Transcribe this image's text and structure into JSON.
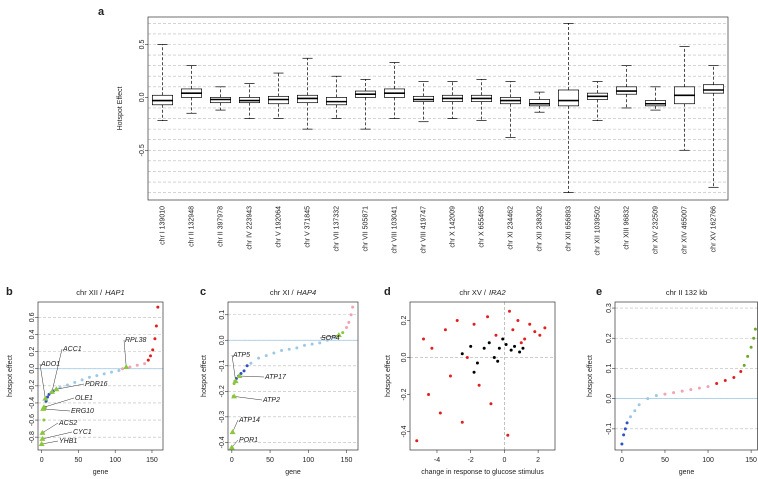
{
  "chart_data": [
    {
      "type": "box",
      "panel_label": "a",
      "y_label": "Hotspot Effect",
      "categories": [
        "chr I 139010",
        "chr II 132948",
        "chr II 397978",
        "chr IV 223943",
        "chr V 192064",
        "chr V 371845",
        "chr VII 137332",
        "chr VII 505871",
        "chr VIII 103041",
        "chr VIII 419747",
        "chr X 142009",
        "chr X 655465",
        "chr XI 234462",
        "chr XII 238302",
        "chr XII 656893",
        "chr XII 1039502",
        "chr XIII 96832",
        "chr XIV 232509",
        "chr XIV 465007",
        "chr XV 162766"
      ],
      "boxes": [
        {
          "low": -0.22,
          "q1": -0.07,
          "median": -0.03,
          "q3": 0.02,
          "high": 0.5
        },
        {
          "low": -0.15,
          "q1": 0.0,
          "median": 0.04,
          "q3": 0.08,
          "high": 0.3
        },
        {
          "low": -0.12,
          "q1": -0.05,
          "median": -0.02,
          "q3": 0.0,
          "high": 0.1
        },
        {
          "low": -0.2,
          "q1": -0.05,
          "median": -0.03,
          "q3": 0.0,
          "high": 0.13
        },
        {
          "low": -0.2,
          "q1": -0.06,
          "median": -0.02,
          "q3": 0.01,
          "high": 0.23
        },
        {
          "low": -0.3,
          "q1": -0.05,
          "median": -0.01,
          "q3": 0.02,
          "high": 0.37
        },
        {
          "low": -0.2,
          "q1": -0.07,
          "median": -0.04,
          "q3": 0.0,
          "high": 0.2
        },
        {
          "low": -0.3,
          "q1": 0.0,
          "median": 0.03,
          "q3": 0.06,
          "high": 0.17
        },
        {
          "low": -0.2,
          "q1": 0.0,
          "median": 0.04,
          "q3": 0.08,
          "high": 0.33
        },
        {
          "low": -0.23,
          "q1": -0.04,
          "median": -0.02,
          "q3": 0.01,
          "high": 0.15
        },
        {
          "low": -0.2,
          "q1": -0.04,
          "median": -0.01,
          "q3": 0.02,
          "high": 0.15
        },
        {
          "low": -0.22,
          "q1": -0.04,
          "median": -0.01,
          "q3": 0.02,
          "high": 0.17
        },
        {
          "low": -0.38,
          "q1": -0.06,
          "median": -0.03,
          "q3": 0.0,
          "high": 0.15
        },
        {
          "low": -0.14,
          "q1": -0.08,
          "median": -0.06,
          "q3": -0.02,
          "high": 0.05
        },
        {
          "low": -0.9,
          "q1": -0.08,
          "median": -0.03,
          "q3": 0.07,
          "high": 0.7
        },
        {
          "low": -0.22,
          "q1": -0.02,
          "median": 0.01,
          "q3": 0.04,
          "high": 0.15
        },
        {
          "low": -0.1,
          "q1": 0.03,
          "median": 0.06,
          "q3": 0.1,
          "high": 0.3
        },
        {
          "low": -0.12,
          "q1": -0.08,
          "median": -0.06,
          "q3": -0.03,
          "high": 0.1
        },
        {
          "low": -0.5,
          "q1": -0.06,
          "median": 0.02,
          "q3": 0.1,
          "high": 0.48
        },
        {
          "low": -0.85,
          "q1": 0.04,
          "median": 0.07,
          "q3": 0.12,
          "high": 0.3
        }
      ],
      "ylim": [
        -0.97,
        0.76
      ],
      "yticks": [
        -0.5,
        {
          "value": 0,
          "label": "0.0"
        },
        0.5
      ],
      "ygrid": [
        -0.9,
        -0.8,
        -0.7,
        -0.6,
        -0.5,
        -0.4,
        -0.3,
        -0.2,
        -0.1,
        0.1,
        0.2,
        0.3,
        0.4,
        0.5,
        0.6,
        0.7
      ]
    },
    {
      "type": "scatter",
      "panel_label": "b",
      "title": [
        "chr XII /",
        "HAP1"
      ],
      "x_label": "gene",
      "y_label": "hotspot effect",
      "xlim": [
        -5,
        165
      ],
      "xticks": [
        0,
        50,
        100,
        150
      ],
      "ylim": [
        -0.95,
        0.78
      ],
      "yticks": [
        -0.8,
        -0.6,
        -0.4,
        -0.2,
        {
          "value": 0,
          "label": "0.0"
        },
        0.2,
        0.4,
        0.6
      ],
      "grid": true,
      "zero_line": true,
      "series": [
        {
          "color": "#8cc63f",
          "x": [
            0,
            1,
            2,
            3,
            5
          ],
          "values": [
            -0.88,
            -0.82,
            -0.75,
            -0.6,
            -0.45
          ]
        },
        {
          "color": "#3050c8",
          "x": [
            6,
            8,
            10,
            13,
            16,
            20
          ],
          "values": [
            -0.38,
            -0.33,
            -0.3,
            -0.28,
            -0.26,
            -0.24
          ]
        },
        {
          "color": "#9cc8e6",
          "x": [
            25,
            35,
            45,
            55,
            65,
            75,
            85,
            95,
            105
          ],
          "values": [
            -0.22,
            -0.19,
            -0.16,
            -0.13,
            -0.1,
            -0.08,
            -0.06,
            -0.04,
            -0.02
          ]
        },
        {
          "color": "#f2a2b2",
          "x": [
            110,
            120,
            130,
            140
          ],
          "values": [
            0.0,
            0.02,
            0.04,
            0.06
          ]
        },
        {
          "color": "#e02020",
          "x": [
            145,
            148,
            151,
            154,
            156,
            158
          ],
          "values": [
            0.1,
            0.15,
            0.22,
            0.35,
            0.5,
            0.72
          ]
        }
      ],
      "marker_color": "#8cc63f",
      "annotations": [
        {
          "label": "ACC1",
          "x": 14,
          "y": -0.27
        },
        {
          "label": "ADO1",
          "x": 5,
          "y": -0.35
        },
        {
          "label": "PDR16",
          "x": 20,
          "y": -0.24
        },
        {
          "label": "OLE1",
          "x": 3,
          "y": -0.45
        },
        {
          "label": "ERG10",
          "x": 2,
          "y": -0.47
        },
        {
          "label": "ACS2",
          "x": 1,
          "y": -0.75
        },
        {
          "label": "CYC1",
          "x": 1,
          "y": -0.82
        },
        {
          "label": "YHB1",
          "x": 0,
          "y": -0.88
        },
        {
          "label": "RPL38",
          "x": 115,
          "y": 0.02
        }
      ]
    },
    {
      "type": "scatter",
      "panel_label": "c",
      "title": [
        "chr XI /",
        "HAP4"
      ],
      "x_label": "gene",
      "y_label": "hotspot effect",
      "xlim": [
        -5,
        165
      ],
      "xticks": [
        0,
        50,
        100,
        150
      ],
      "ylim": [
        -0.43,
        0.15
      ],
      "yticks": [
        -0.4,
        -0.3,
        -0.2,
        -0.1,
        {
          "value": 0,
          "label": "0.0"
        },
        0.1
      ],
      "grid": true,
      "zero_line": true,
      "series": [
        {
          "color": "#8cc63f",
          "x": [
            0,
            1,
            2,
            3,
            4
          ],
          "values": [
            -0.42,
            -0.36,
            -0.22,
            -0.17,
            -0.16
          ]
        },
        {
          "color": "#3050c8",
          "x": [
            6,
            9,
            12,
            16,
            20
          ],
          "values": [
            -0.15,
            -0.14,
            -0.13,
            -0.12,
            -0.1
          ]
        },
        {
          "color": "#9cc8e6",
          "x": [
            25,
            35,
            45,
            55,
            65,
            75,
            85,
            95,
            105,
            115,
            125,
            135
          ],
          "values": [
            -0.09,
            -0.07,
            -0.06,
            -0.05,
            -0.04,
            -0.035,
            -0.03,
            -0.02,
            -0.015,
            -0.01,
            0.0,
            0.01
          ]
        },
        {
          "color": "#8cc63f",
          "x": [
            140,
            145
          ],
          "values": [
            0.02,
            0.03
          ]
        },
        {
          "color": "#f2a2b2",
          "x": [
            150,
            153,
            156,
            158
          ],
          "values": [
            0.05,
            0.07,
            0.1,
            0.13
          ]
        }
      ],
      "marker_color": "#8cc63f",
      "annotations": [
        {
          "label": "SOP4",
          "x": 140,
          "y": 0.02
        },
        {
          "label": "ATP5",
          "x": 5,
          "y": -0.16
        },
        {
          "label": "ATP17",
          "x": 10,
          "y": -0.14
        },
        {
          "label": "ATP2",
          "x": 3,
          "y": -0.22
        },
        {
          "label": "ATP14",
          "x": 1,
          "y": -0.36
        },
        {
          "label": "POR1",
          "x": 0,
          "y": -0.42
        }
      ]
    },
    {
      "type": "scatter",
      "panel_label": "d",
      "title": [
        "chr XV /",
        "IRA2"
      ],
      "x_label": "change in response to glucose stimulus",
      "y_label": "hotspot effect",
      "xlim": [
        -5.6,
        3
      ],
      "xticks": [
        -4,
        -2,
        0,
        2
      ],
      "ylim": [
        -0.5,
        0.3
      ],
      "yticks": [
        -0.4,
        -0.2,
        {
          "value": 0,
          "label": "0.0"
        },
        0.2
      ],
      "grid": false,
      "cross_lines": true,
      "series": [
        {
          "color": "#e02020",
          "x": [
            -5.2,
            -4.8,
            -4.5,
            -4.3,
            -3.8,
            -3.5,
            -3.2,
            -2.8,
            -2.5,
            -2.2,
            -1.8,
            -1.5,
            -1.0,
            -0.5,
            0.2,
            0.5,
            0.8,
            1.2,
            1.5,
            1.8,
            2.1,
            2.4,
            -0.8,
            0.3,
            1.0
          ],
          "values": [
            -0.45,
            0.1,
            -0.2,
            0.05,
            -0.3,
            0.15,
            -0.1,
            0.2,
            -0.35,
            0.0,
            0.18,
            -0.15,
            0.22,
            0.12,
            -0.42,
            0.15,
            0.2,
            0.1,
            0.18,
            0.14,
            0.12,
            0.16,
            -0.25,
            0.25,
            0.08
          ]
        },
        {
          "color": "#000000",
          "x": [
            -2.5,
            -2.0,
            -1.6,
            -1.2,
            -0.9,
            -0.6,
            -0.3,
            -0.1,
            0.1,
            0.4,
            0.6,
            0.9,
            1.1,
            -1.8,
            -0.4
          ],
          "values": [
            0.02,
            0.06,
            -0.03,
            0.05,
            0.08,
            0.0,
            0.05,
            0.1,
            0.07,
            0.04,
            0.06,
            0.03,
            0.05,
            -0.08,
            -0.02
          ]
        }
      ]
    },
    {
      "type": "scatter",
      "panel_label": "e",
      "title": [
        "chr II 132 kb"
      ],
      "x_label": "gene",
      "y_label": "hotspot effect",
      "xlim": [
        -8,
        158
      ],
      "xticks": [
        0,
        50,
        100,
        150
      ],
      "ylim": [
        -0.17,
        0.32
      ],
      "yticks": [
        -0.1,
        {
          "value": 0,
          "label": "0.0"
        },
        0.1,
        0.2,
        0.3
      ],
      "grid": true,
      "zero_line": true,
      "series": [
        {
          "color": "#3050c8",
          "x": [
            0,
            2,
            4,
            6
          ],
          "values": [
            -0.15,
            -0.12,
            -0.1,
            -0.08
          ]
        },
        {
          "color": "#9cc8e6",
          "x": [
            10,
            15,
            20,
            30,
            40
          ],
          "values": [
            -0.06,
            -0.04,
            -0.02,
            0.0,
            0.01
          ]
        },
        {
          "color": "#f2a2b2",
          "x": [
            50,
            60,
            70,
            80,
            90,
            100
          ],
          "values": [
            0.015,
            0.02,
            0.025,
            0.03,
            0.035,
            0.04
          ]
        },
        {
          "color": "#e02020",
          "x": [
            110,
            120,
            130,
            138
          ],
          "values": [
            0.05,
            0.06,
            0.07,
            0.09
          ]
        },
        {
          "color": "#6aa82a",
          "x": [
            142,
            146,
            150,
            153,
            155
          ],
          "values": [
            0.11,
            0.14,
            0.17,
            0.2,
            0.23
          ]
        }
      ]
    }
  ]
}
